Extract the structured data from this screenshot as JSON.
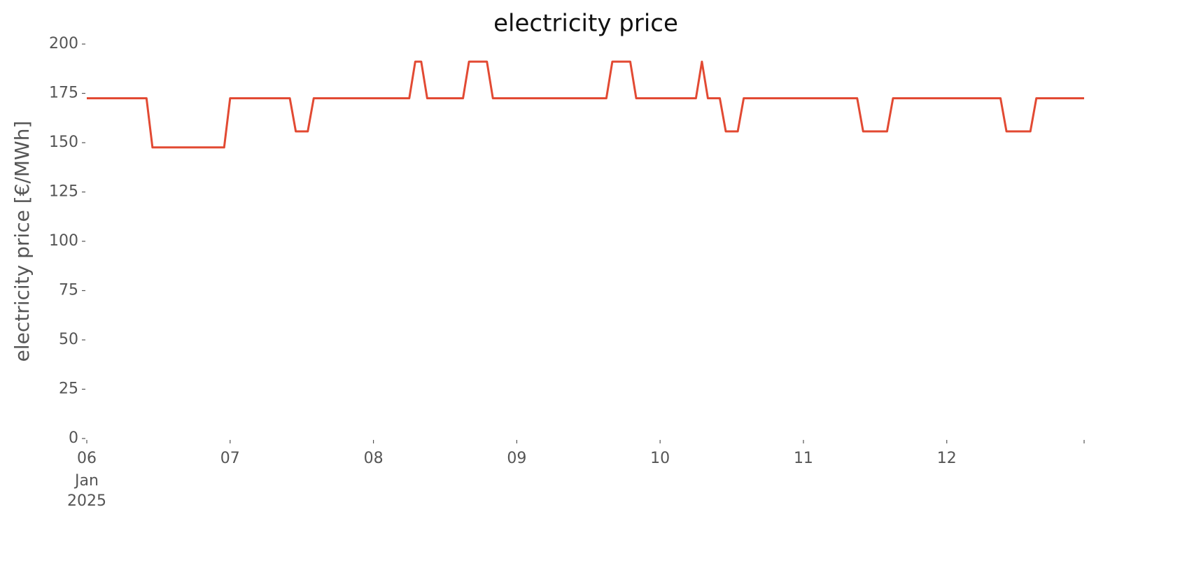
{
  "chart_data": {
    "type": "line",
    "title": "electricity price",
    "ylabel": "electricity price [€/MWh]",
    "x": [
      0,
      1,
      2,
      3,
      4,
      5,
      6,
      7,
      8,
      9,
      10,
      11,
      12,
      13,
      14,
      15,
      16,
      17,
      18,
      19,
      20,
      21,
      22,
      23,
      24,
      25,
      26,
      27,
      28,
      29,
      30,
      31,
      32,
      33,
      34,
      35,
      36,
      37,
      38,
      39,
      40,
      41,
      42,
      43,
      44,
      45,
      46,
      47,
      48,
      49,
      50,
      51,
      52,
      53,
      54,
      55,
      56,
      57,
      58,
      59,
      60,
      61,
      62,
      63,
      64,
      65,
      66,
      67,
      68,
      69,
      70,
      71,
      72,
      73,
      74,
      75,
      76,
      77,
      78,
      79,
      80,
      81,
      82,
      83,
      84,
      85,
      86,
      87,
      88,
      89,
      90,
      91,
      92,
      93,
      94,
      95,
      96,
      97,
      98,
      99,
      100,
      101,
      102,
      103,
      104,
      105,
      106,
      107,
      108,
      109,
      110,
      111,
      112,
      113,
      114,
      115,
      116,
      117,
      118,
      119,
      120,
      121,
      122,
      123,
      124,
      125,
      126,
      127,
      128,
      129,
      130,
      131,
      132,
      133,
      134,
      135,
      136,
      137,
      138,
      139,
      140,
      141,
      142,
      143,
      144,
      145,
      146,
      147,
      148,
      149,
      150,
      151,
      152,
      153,
      154,
      155,
      156,
      157,
      158,
      159,
      160,
      161,
      162,
      163,
      164,
      165,
      166,
      167
    ],
    "values": [
      172.5,
      172.5,
      172.5,
      172.5,
      172.5,
      172.5,
      172.5,
      172.5,
      172.5,
      172.5,
      172.5,
      147.6,
      147.6,
      147.6,
      147.6,
      147.6,
      147.6,
      147.6,
      147.6,
      147.6,
      147.6,
      147.6,
      147.6,
      147.6,
      172.5,
      172.5,
      172.5,
      172.5,
      172.5,
      172.5,
      172.5,
      172.5,
      172.5,
      172.5,
      172.5,
      155.7,
      155.7,
      155.7,
      172.5,
      172.5,
      172.5,
      172.5,
      172.5,
      172.5,
      172.5,
      172.5,
      172.5,
      172.5,
      172.5,
      172.5,
      172.5,
      172.5,
      172.5,
      172.5,
      172.5,
      191.1,
      191.1,
      172.5,
      172.5,
      172.5,
      172.5,
      172.5,
      172.5,
      172.5,
      191.1,
      191.1,
      191.1,
      191.1,
      172.5,
      172.5,
      172.5,
      172.5,
      172.5,
      172.5,
      172.5,
      172.5,
      172.5,
      172.5,
      172.5,
      172.5,
      172.5,
      172.5,
      172.5,
      172.5,
      172.5,
      172.5,
      172.5,
      172.5,
      191.1,
      191.1,
      191.1,
      191.1,
      172.5,
      172.5,
      172.5,
      172.5,
      172.5,
      172.5,
      172.5,
      172.5,
      172.5,
      172.5,
      172.5,
      191.1,
      172.5,
      172.5,
      172.5,
      155.7,
      155.7,
      155.7,
      172.5,
      172.5,
      172.5,
      172.5,
      172.5,
      172.5,
      172.5,
      172.5,
      172.5,
      172.5,
      172.5,
      172.5,
      172.5,
      172.5,
      172.5,
      172.5,
      172.5,
      172.5,
      172.5,
      172.5,
      155.7,
      155.7,
      155.7,
      155.7,
      155.7,
      172.5,
      172.5,
      172.5,
      172.5,
      172.5,
      172.5,
      172.5,
      172.5,
      172.5,
      172.5,
      172.5,
      172.5,
      172.5,
      172.5,
      172.5,
      172.5,
      172.5,
      172.5,
      172.5,
      155.7,
      155.7,
      155.7,
      155.7,
      155.7,
      172.5,
      172.5,
      172.5,
      172.5,
      172.5,
      172.5,
      172.5,
      172.5,
      172.5
    ],
    "color": "#e24a33",
    "xlim": [
      0,
      167
    ],
    "xticks": [
      {
        "value": 0,
        "label": "06"
      },
      {
        "value": 24,
        "label": "07"
      },
      {
        "value": 48,
        "label": "08"
      },
      {
        "value": 72,
        "label": "09"
      },
      {
        "value": 96,
        "label": "10"
      },
      {
        "value": 120,
        "label": "11"
      },
      {
        "value": 144,
        "label": "12"
      },
      {
        "value": 167,
        "label": null
      }
    ],
    "x_month": "Jan",
    "x_year": "2025",
    "ylim": [
      0,
      200
    ],
    "yticks": [
      0,
      25,
      50,
      75,
      100,
      125,
      150,
      175,
      200
    ],
    "grid": false
  }
}
